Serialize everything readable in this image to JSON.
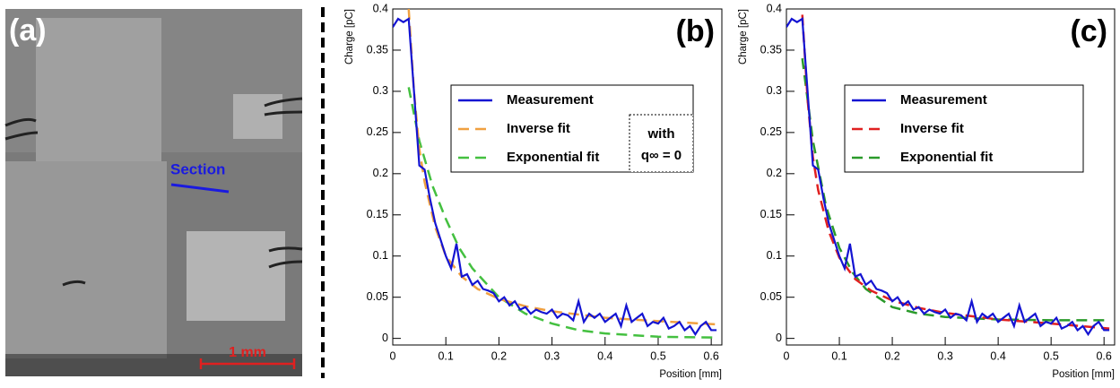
{
  "panel_a": {
    "label": "(a)",
    "annotation": "Section",
    "scale_bar": "1 mm"
  },
  "chart_data": [
    {
      "type": "line",
      "panel_label": "(b)",
      "x_label": "Position [mm]",
      "y_label": "Charge [pC]",
      "xlim": [
        0,
        0.62
      ],
      "ylim": [
        -0.008,
        0.4
      ],
      "xticks": [
        0,
        0.1,
        0.2,
        0.3,
        0.4,
        0.5,
        0.6
      ],
      "yticks": [
        0,
        0.05,
        0.1,
        0.15,
        0.2,
        0.25,
        0.3,
        0.35,
        0.4
      ],
      "legend_note": [
        "with",
        "q∞ = 0"
      ],
      "series": [
        {
          "name": "Measurement",
          "color": "#1414d2",
          "dashed": false,
          "x": [
            0,
            0.01,
            0.02,
            0.03,
            0.04,
            0.05,
            0.06,
            0.07,
            0.08,
            0.09,
            0.1,
            0.11,
            0.12,
            0.13,
            0.14,
            0.15,
            0.16,
            0.17,
            0.18,
            0.19,
            0.2,
            0.21,
            0.22,
            0.23,
            0.24,
            0.25,
            0.26,
            0.27,
            0.28,
            0.29,
            0.3,
            0.31,
            0.32,
            0.33,
            0.34,
            0.35,
            0.36,
            0.37,
            0.38,
            0.39,
            0.4,
            0.41,
            0.42,
            0.43,
            0.44,
            0.45,
            0.46,
            0.47,
            0.48,
            0.49,
            0.5,
            0.51,
            0.52,
            0.53,
            0.54,
            0.55,
            0.56,
            0.57,
            0.58,
            0.59,
            0.6,
            0.61
          ],
          "values": [
            0.378,
            0.388,
            0.384,
            0.388,
            0.3,
            0.21,
            0.205,
            0.17,
            0.14,
            0.12,
            0.1,
            0.085,
            0.115,
            0.075,
            0.078,
            0.065,
            0.07,
            0.06,
            0.058,
            0.055,
            0.045,
            0.05,
            0.04,
            0.045,
            0.035,
            0.038,
            0.03,
            0.035,
            0.032,
            0.03,
            0.035,
            0.025,
            0.03,
            0.028,
            0.022,
            0.045,
            0.02,
            0.03,
            0.025,
            0.03,
            0.02,
            0.025,
            0.03,
            0.015,
            0.04,
            0.02,
            0.025,
            0.03,
            0.015,
            0.02,
            0.018,
            0.025,
            0.012,
            0.015,
            0.02,
            0.01,
            0.015,
            0.005,
            0.015,
            0.02,
            0.01,
            0.01
          ]
        },
        {
          "name": "Inverse fit",
          "color": "#f0a040",
          "dashed": true,
          "x": [
            0.03,
            0.04,
            0.05,
            0.06,
            0.08,
            0.1,
            0.13,
            0.16,
            0.2,
            0.25,
            0.3,
            0.4,
            0.5,
            0.61
          ],
          "values": [
            0.4,
            0.3,
            0.23,
            0.19,
            0.135,
            0.1,
            0.075,
            0.06,
            0.048,
            0.039,
            0.033,
            0.025,
            0.021,
            0.017
          ]
        },
        {
          "name": "Exponential fit",
          "color": "#44c040",
          "dashed": true,
          "x": [
            0.03,
            0.05,
            0.075,
            0.1,
            0.125,
            0.15,
            0.2,
            0.25,
            0.3,
            0.35,
            0.4,
            0.5,
            0.61
          ],
          "values": [
            0.305,
            0.24,
            0.185,
            0.145,
            0.11,
            0.085,
            0.05,
            0.03,
            0.018,
            0.01,
            0.006,
            0.002,
            0.001
          ]
        }
      ]
    },
    {
      "type": "line",
      "panel_label": "(c)",
      "x_label": "Position [mm]",
      "y_label": "Charge [pC]",
      "xlim": [
        0,
        0.62
      ],
      "ylim": [
        -0.008,
        0.4
      ],
      "xticks": [
        0,
        0.1,
        0.2,
        0.3,
        0.4,
        0.5,
        0.6
      ],
      "yticks": [
        0,
        0.05,
        0.1,
        0.15,
        0.2,
        0.25,
        0.3,
        0.35,
        0.4
      ],
      "series": [
        {
          "name": "Measurement",
          "color": "#1414d2",
          "dashed": false,
          "x": [
            0,
            0.01,
            0.02,
            0.03,
            0.04,
            0.05,
            0.06,
            0.07,
            0.08,
            0.09,
            0.1,
            0.11,
            0.12,
            0.13,
            0.14,
            0.15,
            0.16,
            0.17,
            0.18,
            0.19,
            0.2,
            0.21,
            0.22,
            0.23,
            0.24,
            0.25,
            0.26,
            0.27,
            0.28,
            0.29,
            0.3,
            0.31,
            0.32,
            0.33,
            0.34,
            0.35,
            0.36,
            0.37,
            0.38,
            0.39,
            0.4,
            0.41,
            0.42,
            0.43,
            0.44,
            0.45,
            0.46,
            0.47,
            0.48,
            0.49,
            0.5,
            0.51,
            0.52,
            0.53,
            0.54,
            0.55,
            0.56,
            0.57,
            0.58,
            0.59,
            0.6,
            0.61
          ],
          "values": [
            0.378,
            0.388,
            0.384,
            0.388,
            0.3,
            0.21,
            0.205,
            0.17,
            0.14,
            0.12,
            0.1,
            0.085,
            0.115,
            0.075,
            0.078,
            0.065,
            0.07,
            0.06,
            0.058,
            0.055,
            0.045,
            0.05,
            0.04,
            0.045,
            0.035,
            0.038,
            0.03,
            0.035,
            0.032,
            0.03,
            0.035,
            0.025,
            0.03,
            0.028,
            0.022,
            0.045,
            0.02,
            0.03,
            0.025,
            0.03,
            0.02,
            0.025,
            0.03,
            0.015,
            0.04,
            0.02,
            0.025,
            0.03,
            0.015,
            0.02,
            0.018,
            0.025,
            0.012,
            0.015,
            0.02,
            0.01,
            0.015,
            0.005,
            0.015,
            0.02,
            0.01,
            0.01
          ]
        },
        {
          "name": "Inverse fit",
          "color": "#e02020",
          "dashed": true,
          "x": [
            0.03,
            0.04,
            0.05,
            0.06,
            0.08,
            0.1,
            0.13,
            0.16,
            0.2,
            0.25,
            0.3,
            0.4,
            0.5,
            0.61
          ],
          "values": [
            0.393,
            0.29,
            0.22,
            0.18,
            0.13,
            0.098,
            0.072,
            0.058,
            0.046,
            0.037,
            0.031,
            0.023,
            0.018,
            0.012
          ]
        },
        {
          "name": "Exponential fit",
          "color": "#2a9a2a",
          "dashed": true,
          "x": [
            0.03,
            0.05,
            0.075,
            0.1,
            0.125,
            0.15,
            0.2,
            0.25,
            0.3,
            0.4,
            0.5,
            0.61
          ],
          "values": [
            0.34,
            0.24,
            0.16,
            0.11,
            0.08,
            0.06,
            0.038,
            0.03,
            0.026,
            0.023,
            0.022,
            0.022
          ]
        }
      ]
    }
  ]
}
